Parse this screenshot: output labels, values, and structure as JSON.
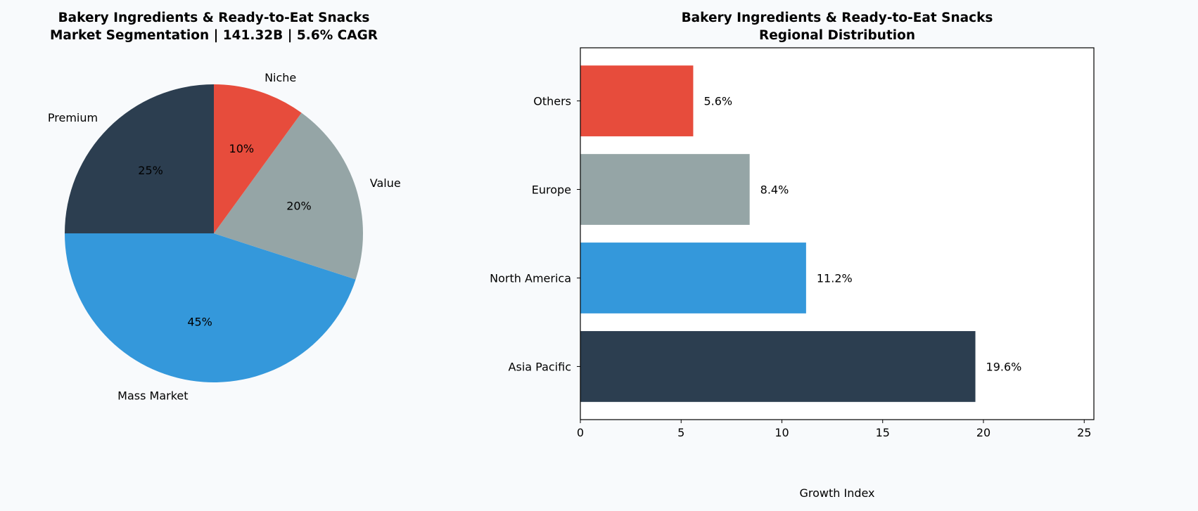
{
  "chart_data": [
    {
      "type": "pie",
      "title_lines": [
        "Bakery Ingredients & Ready-to-Eat Snacks",
        "Market Segmentation | 141.32B | 5.6% CAGR"
      ],
      "labels": [
        "Premium",
        "Mass Market",
        "Value",
        "Niche"
      ],
      "values": [
        25,
        45,
        20,
        10
      ],
      "pct_labels": [
        "25%",
        "45%",
        "20%",
        "10%"
      ],
      "colors": [
        "#2c3e50",
        "#3498db",
        "#95a5a6",
        "#e74c3c"
      ],
      "start_angle": 90,
      "direction": "counterclockwise"
    },
    {
      "type": "bar",
      "orientation": "horizontal",
      "title_lines": [
        "Bakery Ingredients & Ready-to-Eat Snacks",
        "Regional Distribution"
      ],
      "categories": [
        "Asia Pacific",
        "North America",
        "Europe",
        "Others"
      ],
      "values": [
        19.6,
        11.2,
        8.4,
        5.6
      ],
      "value_labels": [
        "19.6%",
        "11.2%",
        "8.4%",
        "5.6%"
      ],
      "colors": [
        "#2c3e50",
        "#3498db",
        "#95a5a6",
        "#e74c3c"
      ],
      "xlabel": "Growth Index",
      "xlim": [
        0,
        25.48
      ],
      "xticks": [
        0,
        5,
        10,
        15,
        20,
        25
      ],
      "xtick_labels": [
        "0",
        "5",
        "10",
        "15",
        "20",
        "25"
      ],
      "grid": false
    }
  ]
}
